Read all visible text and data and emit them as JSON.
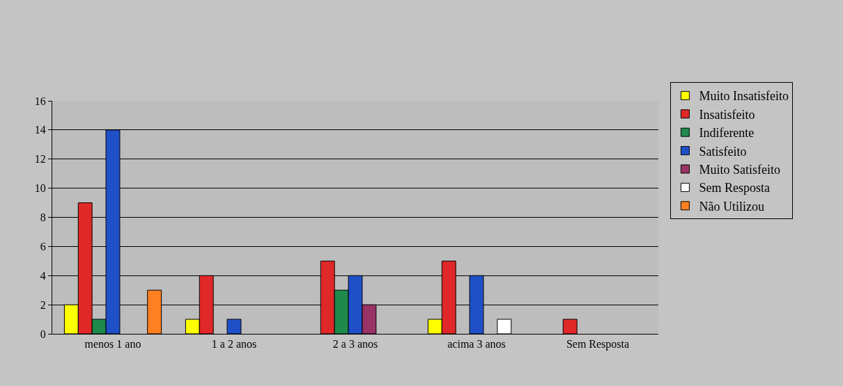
{
  "chart_data": {
    "type": "bar",
    "categories": [
      "menos 1 ano",
      "1 a 2 anos",
      "2 a 3 anos",
      "acima 3 anos",
      "Sem Resposta"
    ],
    "series": [
      {
        "name": "Muito Insatisfeito",
        "color": "#ffff00",
        "values": [
          2,
          1,
          null,
          1,
          null
        ]
      },
      {
        "name": "Insatisfeito",
        "color": "#e02828",
        "values": [
          9,
          4,
          5,
          5,
          1
        ]
      },
      {
        "name": "Indiferente",
        "color": "#1f8a4c",
        "values": [
          1,
          null,
          3,
          null,
          null
        ]
      },
      {
        "name": "Satisfeito",
        "color": "#1f50c8",
        "values": [
          14,
          1,
          4,
          4,
          null
        ]
      },
      {
        "name": "Muito Satisfeito",
        "color": "#993366",
        "values": [
          null,
          null,
          2,
          null,
          null
        ]
      },
      {
        "name": "Sem Resposta",
        "color": "#ffffff",
        "values": [
          null,
          null,
          null,
          1,
          null
        ]
      },
      {
        "name": "Não Utilizou",
        "color": "#ff8020",
        "values": [
          3,
          null,
          null,
          null,
          null
        ]
      }
    ],
    "ylim": [
      0,
      16
    ],
    "yticks": [
      0,
      2,
      4,
      6,
      8,
      10,
      12,
      14,
      16
    ],
    "grid": "y",
    "legend": "right"
  }
}
